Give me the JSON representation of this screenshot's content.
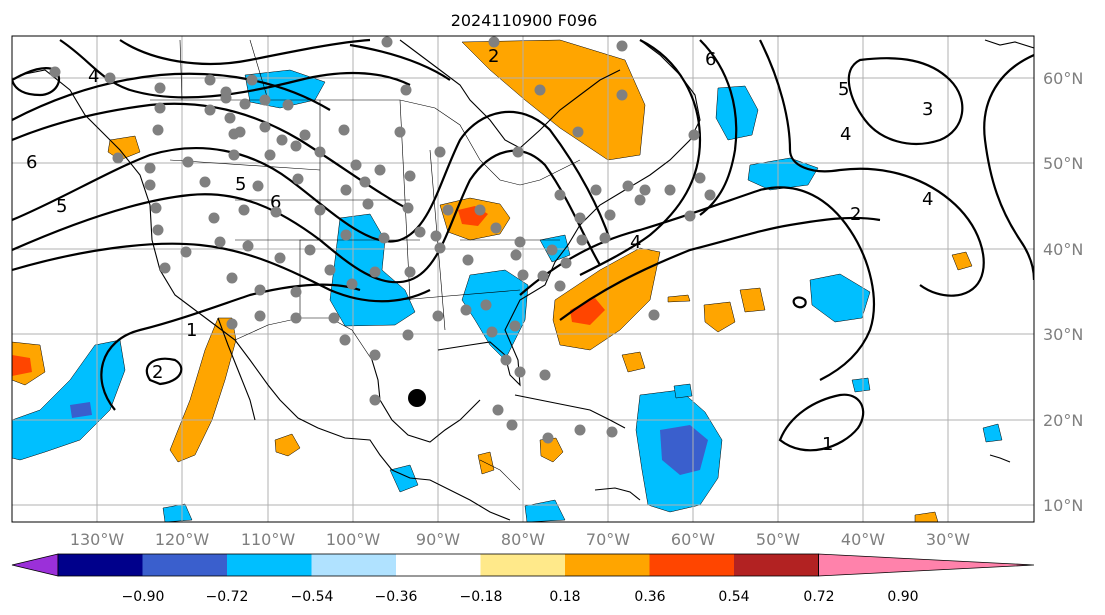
{
  "title": "2024110900 F096",
  "lat_labels": [
    "60°N",
    "50°N",
    "40°N",
    "30°N",
    "20°N",
    "10°N"
  ],
  "lon_labels": [
    "130°W",
    "120°W",
    "110°W",
    "100°W",
    "90°W",
    "80°W",
    "70°W",
    "60°W",
    "50°W",
    "40°W",
    "30°W"
  ],
  "colorbar": {
    "tick_labels": [
      "−0.90",
      "−0.72",
      "−0.54",
      "−0.36",
      "−0.18",
      "0.18",
      "0.36",
      "0.54",
      "0.72",
      "0.90"
    ],
    "colors": [
      "#9b30d9",
      "#00008b",
      "#3a5fcd",
      "#00bfff",
      "#b0e2ff",
      "#ffffff",
      "#ffe98a",
      "#ffa500",
      "#ff4500",
      "#b22222",
      "#ff82ab"
    ]
  },
  "contour_labels": [
    "6",
    "5",
    "6",
    "5",
    "4",
    "6",
    "5",
    "3",
    "4",
    "2",
    "4",
    "1",
    "2",
    "1",
    "2",
    "4"
  ],
  "colors": {
    "positive": "#ffa500",
    "positive_strong": "#ff4500",
    "negative": "#00bfff",
    "negative_strong": "#3a5fcd",
    "station": "#808080",
    "center_marker": "#000000"
  }
}
